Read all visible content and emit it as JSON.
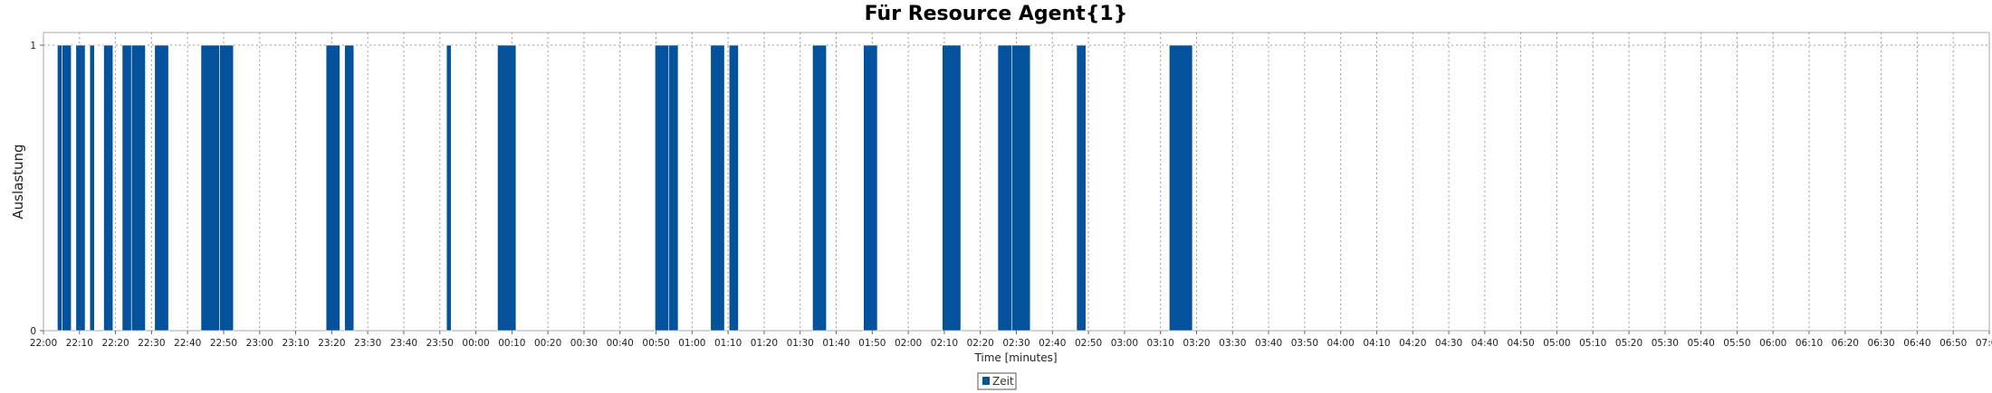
{
  "chart_data": {
    "type": "bar",
    "title": "Für Resource Agent{1}",
    "xlabel": "Time [minutes]",
    "ylabel": "Auslastung",
    "y_ticks": [
      "0",
      "1"
    ],
    "ylim": [
      0,
      1
    ],
    "x_range_minutes": [
      1320,
      1740
    ],
    "x_ticks": [
      "22:00",
      "22:10",
      "22:20",
      "22:30",
      "22:40",
      "22:50",
      "23:00",
      "23:10",
      "23:20",
      "23:30",
      "23:40",
      "23:50",
      "00:00",
      "00:10",
      "00:20",
      "00:30",
      "00:40",
      "00:50",
      "01:00",
      "01:10",
      "01:20",
      "01:30",
      "01:40",
      "01:50",
      "02:00",
      "02:10",
      "02:20",
      "02:30",
      "02:40",
      "02:50",
      "03:00",
      "03:10",
      "03:20",
      "03:30",
      "03:40",
      "03:50",
      "04:00",
      "04:10",
      "04:20",
      "04:30",
      "04:40",
      "04:50",
      "05:00",
      "05:10",
      "05:20",
      "05:30",
      "05:40",
      "05:50",
      "06:00",
      "06:10",
      "06:20",
      "06:30",
      "06:40",
      "06:50",
      "07:00"
    ],
    "grid": true,
    "legend_position": "bottom-center",
    "series": [
      {
        "name": "Zeit",
        "color": "#03529b",
        "intervals": [
          {
            "start": "22:03",
            "end": "22:04",
            "value": 1
          },
          {
            "start": "22:04",
            "end": "22:06",
            "value": 1
          },
          {
            "start": "22:07",
            "end": "22:09",
            "value": 1
          },
          {
            "start": "22:10",
            "end": "22:11",
            "value": 1
          },
          {
            "start": "22:13",
            "end": "22:15",
            "value": 1
          },
          {
            "start": "22:17",
            "end": "22:19",
            "value": 1
          },
          {
            "start": "22:19",
            "end": "22:22",
            "value": 1
          },
          {
            "start": "22:24",
            "end": "22:27",
            "value": 1
          },
          {
            "start": "22:34",
            "end": "22:38",
            "value": 1
          },
          {
            "start": "22:38",
            "end": "22:41",
            "value": 1
          },
          {
            "start": "23:01",
            "end": "23:04",
            "value": 1
          },
          {
            "start": "23:05",
            "end": "23:07",
            "value": 1
          },
          {
            "start": "23:27",
            "end": "23:28",
            "value": 1
          },
          {
            "start": "23:38",
            "end": "23:42",
            "value": 1
          },
          {
            "start": "00:12",
            "end": "00:15",
            "value": 1
          },
          {
            "start": "00:15",
            "end": "00:17",
            "value": 1
          },
          {
            "start": "00:24",
            "end": "00:27",
            "value": 1
          },
          {
            "start": "00:28",
            "end": "00:30",
            "value": 1
          },
          {
            "start": "00:46",
            "end": "00:49",
            "value": 1
          },
          {
            "start": "00:57",
            "end": "01:00",
            "value": 1
          },
          {
            "start": "01:14",
            "end": "01:18",
            "value": 1
          },
          {
            "start": "01:26",
            "end": "01:29",
            "value": 1
          },
          {
            "start": "01:29",
            "end": "01:33",
            "value": 1
          },
          {
            "start": "01:43",
            "end": "01:45",
            "value": 1
          },
          {
            "start": "02:03",
            "end": "02:08",
            "value": 1
          }
        ]
      }
    ]
  }
}
